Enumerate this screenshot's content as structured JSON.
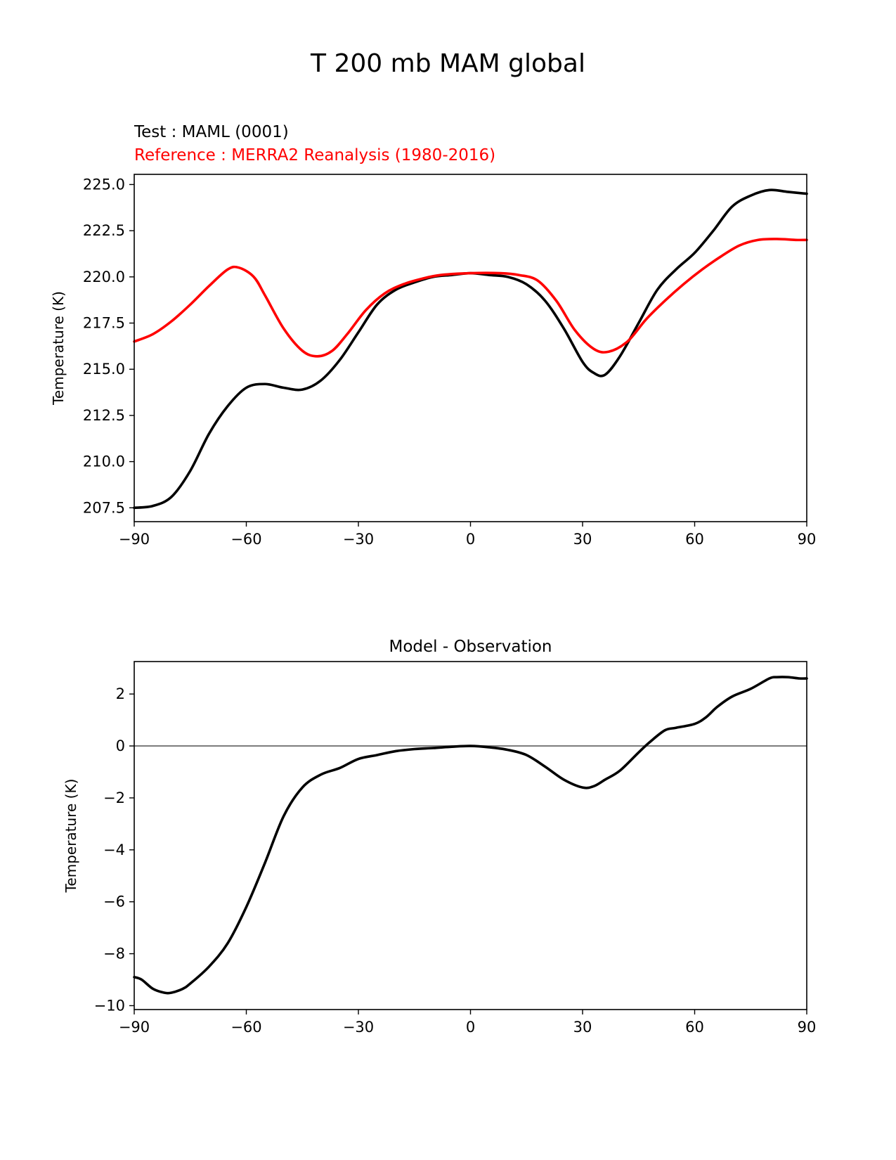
{
  "figure": {
    "title": "T 200 mb MAM global",
    "test_label": "Test : MAML (0001)",
    "reference_label": "Reference : MERRA2 Reanalysis (1980-2016)",
    "colors": {
      "test": "#000000",
      "reference": "#ff0000",
      "zero_line": "#808080"
    }
  },
  "chart_data": [
    {
      "type": "line",
      "title": "",
      "xlabel": "",
      "ylabel": "Temperature (K)",
      "xlim": [
        -90,
        90
      ],
      "ylim": [
        206.75,
        225.55
      ],
      "xticks": [
        -90,
        -60,
        -30,
        0,
        30,
        60,
        90
      ],
      "xtick_labels": [
        "−90",
        "−60",
        "−30",
        "0",
        "30",
        "60",
        "90"
      ],
      "yticks": [
        207.5,
        210.0,
        212.5,
        215.0,
        217.5,
        220.0,
        222.5,
        225.0
      ],
      "ytick_labels": [
        "207.5",
        "210.0",
        "212.5",
        "215.0",
        "217.5",
        "220.0",
        "222.5",
        "225.0"
      ],
      "legend_position": "above-left",
      "series": [
        {
          "name": "Test : MAML (0001)",
          "color": "#000000",
          "x": [
            -90,
            -85,
            -80,
            -75,
            -70,
            -65,
            -60,
            -55,
            -50,
            -45,
            -40,
            -35,
            -30,
            -25,
            -20,
            -15,
            -10,
            -5,
            0,
            5,
            10,
            15,
            20,
            25,
            30,
            33,
            36,
            40,
            45,
            50,
            55,
            60,
            65,
            70,
            75,
            80,
            85,
            90
          ],
          "y": [
            207.5,
            207.6,
            208.1,
            209.5,
            211.5,
            213.0,
            214.0,
            214.2,
            214.0,
            213.9,
            214.4,
            215.5,
            217.0,
            218.5,
            219.3,
            219.7,
            220.0,
            220.1,
            220.2,
            220.1,
            220.0,
            219.6,
            218.7,
            217.2,
            215.4,
            214.8,
            214.7,
            215.7,
            217.5,
            219.3,
            220.4,
            221.3,
            222.5,
            223.8,
            224.4,
            224.7,
            224.6,
            224.5
          ]
        },
        {
          "name": "Reference : MERRA2 Reanalysis (1980-2016)",
          "color": "#ff0000",
          "x": [
            -90,
            -85,
            -80,
            -75,
            -70,
            -65,
            -62,
            -58,
            -55,
            -50,
            -45,
            -41,
            -37,
            -33,
            -28,
            -23,
            -18,
            -13,
            -8,
            0,
            8,
            13,
            18,
            23,
            28,
            33,
            37,
            42,
            47,
            52,
            57,
            62,
            67,
            72,
            77,
            82,
            87,
            90
          ],
          "y": [
            216.5,
            216.9,
            217.6,
            218.5,
            219.5,
            220.4,
            220.5,
            220.0,
            219.0,
            217.2,
            216.0,
            215.7,
            216.0,
            216.9,
            218.2,
            219.1,
            219.6,
            219.9,
            220.1,
            220.2,
            220.2,
            220.1,
            219.8,
            218.7,
            217.1,
            216.1,
            215.95,
            216.5,
            217.7,
            218.7,
            219.6,
            220.4,
            221.1,
            221.7,
            222.0,
            222.05,
            222.0,
            222.0
          ]
        }
      ]
    },
    {
      "type": "line",
      "title": "Model - Observation",
      "xlabel": "",
      "ylabel": "Temperature (K)",
      "xlim": [
        -90,
        90
      ],
      "ylim": [
        -10.15,
        3.25
      ],
      "xticks": [
        -90,
        -60,
        -30,
        0,
        30,
        60,
        90
      ],
      "xtick_labels": [
        "−90",
        "−60",
        "−30",
        "0",
        "30",
        "60",
        "90"
      ],
      "yticks": [
        -10,
        -8,
        -6,
        -4,
        -2,
        0,
        2
      ],
      "ytick_labels": [
        "−10",
        "−8",
        "−6",
        "−4",
        "−2",
        "0",
        "2"
      ],
      "reference_line_y": 0,
      "series": [
        {
          "name": "Model - Observation",
          "color": "#000000",
          "x": [
            -90,
            -88,
            -85,
            -82,
            -80,
            -77,
            -75,
            -70,
            -65,
            -60,
            -55,
            -50,
            -45,
            -40,
            -35,
            -30,
            -25,
            -20,
            -15,
            -10,
            -5,
            0,
            5,
            10,
            15,
            20,
            25,
            30,
            33,
            36,
            40,
            45,
            48,
            52,
            55,
            60,
            63,
            66,
            70,
            75,
            80,
            82,
            85,
            88,
            90
          ],
          "y": [
            -8.9,
            -9.0,
            -9.35,
            -9.5,
            -9.5,
            -9.35,
            -9.15,
            -8.5,
            -7.6,
            -6.2,
            -4.5,
            -2.7,
            -1.6,
            -1.1,
            -0.85,
            -0.5,
            -0.35,
            -0.2,
            -0.12,
            -0.08,
            -0.03,
            0.0,
            -0.05,
            -0.15,
            -0.35,
            -0.8,
            -1.3,
            -1.6,
            -1.55,
            -1.3,
            -0.95,
            -0.25,
            0.15,
            0.6,
            0.7,
            0.85,
            1.1,
            1.5,
            1.9,
            2.2,
            2.6,
            2.65,
            2.65,
            2.6,
            2.6
          ]
        }
      ]
    }
  ]
}
